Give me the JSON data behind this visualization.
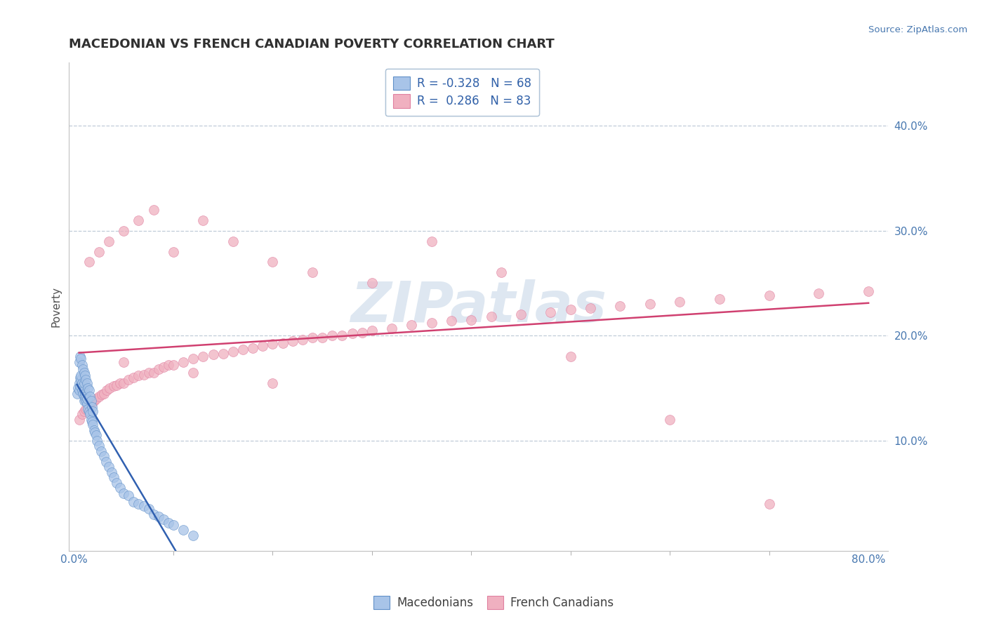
{
  "title": "MACEDONIAN VS FRENCH CANADIAN POVERTY CORRELATION CHART",
  "source": "Source: ZipAtlas.com",
  "ylabel": "Poverty",
  "ytick_labels": [
    "10.0%",
    "20.0%",
    "30.0%",
    "40.0%"
  ],
  "ytick_values": [
    0.1,
    0.2,
    0.3,
    0.4
  ],
  "xlim": [
    -0.005,
    0.82
  ],
  "ylim": [
    -0.005,
    0.46
  ],
  "mac_color_fill": "#a8c4e8",
  "mac_color_edge": "#6090c8",
  "frc_color_fill": "#f0b0c0",
  "frc_color_edge": "#e080a0",
  "mac_line_color": "#3060b0",
  "mac_line_dash_color": "#a0b8d8",
  "frc_line_color": "#d04070",
  "watermark_color": "#c8d8e8",
  "background_color": "#ffffff",
  "grid_color": "#c0ccd8",
  "title_color": "#303030",
  "source_color": "#4878b0",
  "ytick_color": "#4878b0",
  "xtick_color": "#4878b0",
  "ylabel_color": "#505050",
  "title_fontsize": 13,
  "legend_text_color": "#3060a8",
  "legend_r_color": "#c04060",
  "dot_size": 100,
  "mac_scatter_x": [
    0.003,
    0.004,
    0.005,
    0.005,
    0.006,
    0.006,
    0.007,
    0.007,
    0.008,
    0.008,
    0.009,
    0.009,
    0.01,
    0.01,
    0.01,
    0.01,
    0.011,
    0.011,
    0.012,
    0.012,
    0.013,
    0.013,
    0.014,
    0.015,
    0.016,
    0.017,
    0.018,
    0.019,
    0.02,
    0.021,
    0.022,
    0.023,
    0.025,
    0.027,
    0.03,
    0.032,
    0.035,
    0.038,
    0.04,
    0.043,
    0.046,
    0.05,
    0.055,
    0.06,
    0.065,
    0.07,
    0.075,
    0.08,
    0.085,
    0.09,
    0.095,
    0.1,
    0.11,
    0.12,
    0.005,
    0.006,
    0.007,
    0.008,
    0.009,
    0.01,
    0.011,
    0.012,
    0.013,
    0.014,
    0.015,
    0.016,
    0.017,
    0.018,
    0.019
  ],
  "mac_scatter_y": [
    0.145,
    0.15,
    0.155,
    0.148,
    0.16,
    0.152,
    0.158,
    0.162,
    0.155,
    0.148,
    0.145,
    0.152,
    0.142,
    0.148,
    0.155,
    0.138,
    0.14,
    0.145,
    0.138,
    0.142,
    0.135,
    0.14,
    0.13,
    0.128,
    0.125,
    0.12,
    0.118,
    0.115,
    0.11,
    0.108,
    0.105,
    0.1,
    0.095,
    0.09,
    0.085,
    0.08,
    0.075,
    0.07,
    0.065,
    0.06,
    0.055,
    0.05,
    0.048,
    0.042,
    0.04,
    0.038,
    0.035,
    0.03,
    0.028,
    0.025,
    0.022,
    0.02,
    0.015,
    0.01,
    0.175,
    0.18,
    0.178,
    0.172,
    0.168,
    0.165,
    0.162,
    0.158,
    0.155,
    0.15,
    0.148,
    0.142,
    0.138,
    0.132,
    0.128
  ],
  "frc_scatter_x": [
    0.005,
    0.008,
    0.01,
    0.012,
    0.015,
    0.018,
    0.02,
    0.022,
    0.025,
    0.028,
    0.03,
    0.033,
    0.036,
    0.04,
    0.043,
    0.046,
    0.05,
    0.055,
    0.06,
    0.065,
    0.07,
    0.075,
    0.08,
    0.085,
    0.09,
    0.095,
    0.1,
    0.11,
    0.12,
    0.13,
    0.14,
    0.15,
    0.16,
    0.17,
    0.18,
    0.19,
    0.2,
    0.21,
    0.22,
    0.23,
    0.24,
    0.25,
    0.26,
    0.27,
    0.28,
    0.29,
    0.3,
    0.32,
    0.34,
    0.36,
    0.38,
    0.4,
    0.42,
    0.45,
    0.48,
    0.5,
    0.52,
    0.55,
    0.58,
    0.61,
    0.65,
    0.7,
    0.75,
    0.8,
    0.015,
    0.025,
    0.035,
    0.05,
    0.065,
    0.08,
    0.1,
    0.13,
    0.16,
    0.2,
    0.24,
    0.3,
    0.36,
    0.43,
    0.5,
    0.6,
    0.7,
    0.05,
    0.12,
    0.2
  ],
  "frc_scatter_y": [
    0.12,
    0.125,
    0.128,
    0.13,
    0.132,
    0.135,
    0.138,
    0.14,
    0.142,
    0.144,
    0.145,
    0.148,
    0.15,
    0.152,
    0.153,
    0.155,
    0.155,
    0.158,
    0.16,
    0.162,
    0.163,
    0.165,
    0.165,
    0.168,
    0.17,
    0.172,
    0.172,
    0.175,
    0.178,
    0.18,
    0.182,
    0.183,
    0.185,
    0.187,
    0.188,
    0.19,
    0.192,
    0.193,
    0.195,
    0.196,
    0.198,
    0.198,
    0.2,
    0.2,
    0.202,
    0.203,
    0.205,
    0.207,
    0.21,
    0.212,
    0.214,
    0.215,
    0.218,
    0.22,
    0.222,
    0.225,
    0.226,
    0.228,
    0.23,
    0.232,
    0.235,
    0.238,
    0.24,
    0.242,
    0.27,
    0.28,
    0.29,
    0.3,
    0.31,
    0.32,
    0.28,
    0.31,
    0.29,
    0.27,
    0.26,
    0.25,
    0.29,
    0.26,
    0.18,
    0.12,
    0.04,
    0.175,
    0.165,
    0.155
  ]
}
